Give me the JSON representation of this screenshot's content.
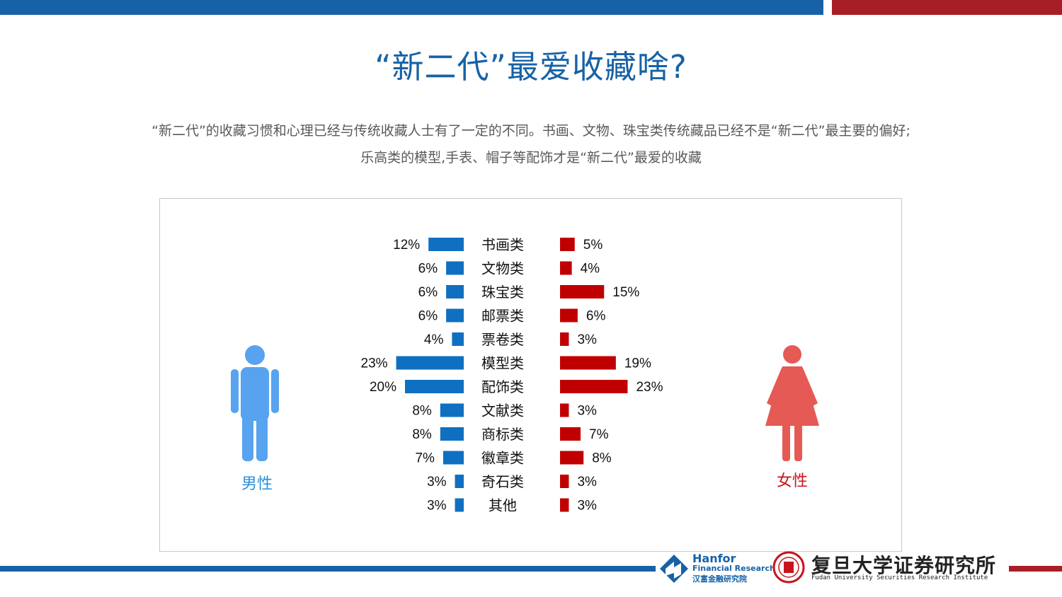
{
  "title": "“新二代”最爱收藏啥?",
  "subtitle_line1": "“新二代”的收藏习惯和心理已经与传统收藏人士有了一定的不同。书画、文物、珠宝类传统藏品已经不是“新二代”最主要的偏好;",
  "subtitle_line2": "乐高类的模型,手表、帽子等配饰才是“新二代”最爱的收藏",
  "colors": {
    "accent_blue": "#1762a6",
    "accent_red": "#a81e27",
    "male_bar": "#0f70c1",
    "female_bar": "#c00000",
    "male_icon": "#57a3f0",
    "female_icon": "#e65a55"
  },
  "chart_data": {
    "type": "bar",
    "orientation": "horizontal-butterfly",
    "categories": [
      "书画类",
      "文物类",
      "珠宝类",
      "邮票类",
      "票卷类",
      "模型类",
      "配饰类",
      "文献类",
      "商标类",
      "徽章类",
      "奇石类",
      "其他"
    ],
    "series": [
      {
        "name": "男性",
        "values": [
          12,
          6,
          6,
          6,
          4,
          23,
          20,
          8,
          8,
          7,
          3,
          3
        ],
        "labels": [
          "12%",
          "6%",
          "6%",
          "6%",
          "4%",
          "23%",
          "20%",
          "8%",
          "8%",
          "7%",
          "3%",
          "3%"
        ]
      },
      {
        "name": "女性",
        "values": [
          5,
          4,
          15,
          6,
          3,
          19,
          23,
          3,
          7,
          8,
          3,
          3
        ],
        "labels": [
          "5%",
          "4%",
          "15%",
          "6%",
          "3%",
          "19%",
          "23%",
          "3%",
          "7%",
          "8%",
          "3%",
          "3%"
        ]
      }
    ],
    "unit": "%"
  },
  "legend": {
    "male": "男性",
    "female": "女性",
    "male_icon": "male-person-icon",
    "female_icon": "female-person-icon"
  },
  "footer": {
    "hanfor_en1": "Hanfor",
    "hanfor_en2": "Financial Research",
    "hanfor_cn": "汉富金融研究院",
    "fudan_cn": "复旦大学证券研究所",
    "fudan_en": "Fudan University Securities Research Institute"
  }
}
